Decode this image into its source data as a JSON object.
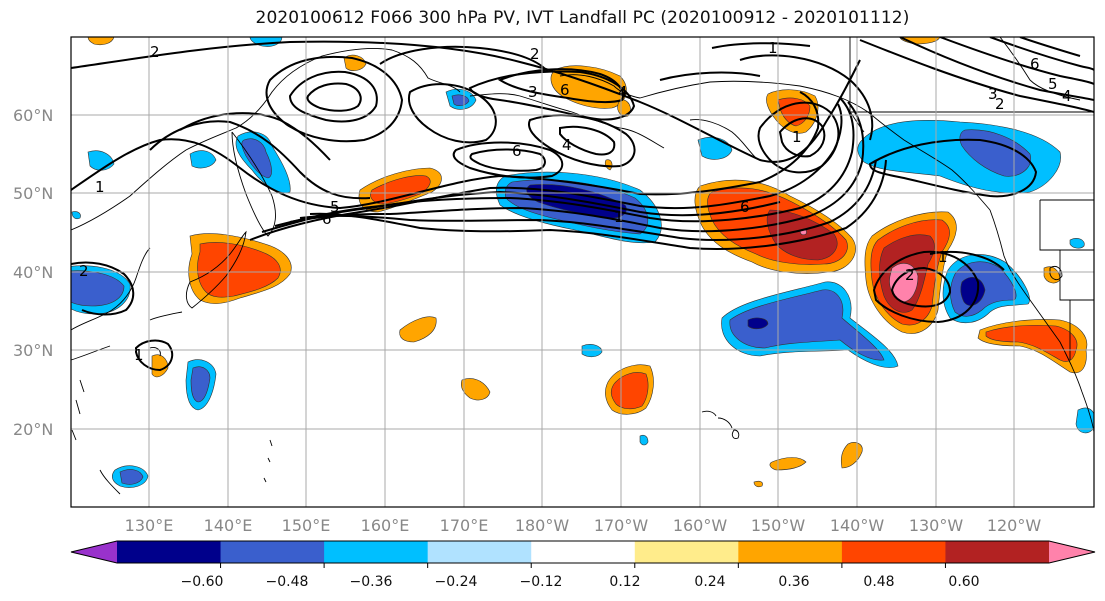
{
  "title": "2020100612 F066 300 hPa PV, IVT Landfall PC (2020100912 - 2020101112)",
  "latitude_labels": [
    "60°N",
    "50°N",
    "40°N",
    "30°N",
    "20°N"
  ],
  "longitude_labels": [
    "130°E",
    "140°E",
    "150°E",
    "160°E",
    "170°E",
    "180°W",
    "170°W",
    "160°W",
    "150°W",
    "140°W",
    "130°W",
    "120°W"
  ],
  "colorbar": {
    "tick_labels": [
      "−0.60",
      "−0.48",
      "−0.36",
      "−0.24",
      "−0.12",
      "0.12",
      "0.24",
      "0.36",
      "0.48",
      "0.60"
    ],
    "colors": [
      "#9932cc",
      "#00008b",
      "#3a5fcd",
      "#00bfff",
      "#b0e2ff",
      "#ffffff",
      "#ffec8b",
      "#ffa500",
      "#ff4500",
      "#b22222",
      "#ff82ab"
    ]
  },
  "contour_labels": [
    "2",
    "2",
    "1",
    "6",
    "5",
    "4",
    "3",
    "2",
    "3",
    "6",
    "4",
    "1",
    "6",
    "4",
    "1",
    "5",
    "6",
    "1",
    "6",
    "2",
    "1",
    "2",
    "1"
  ]
}
